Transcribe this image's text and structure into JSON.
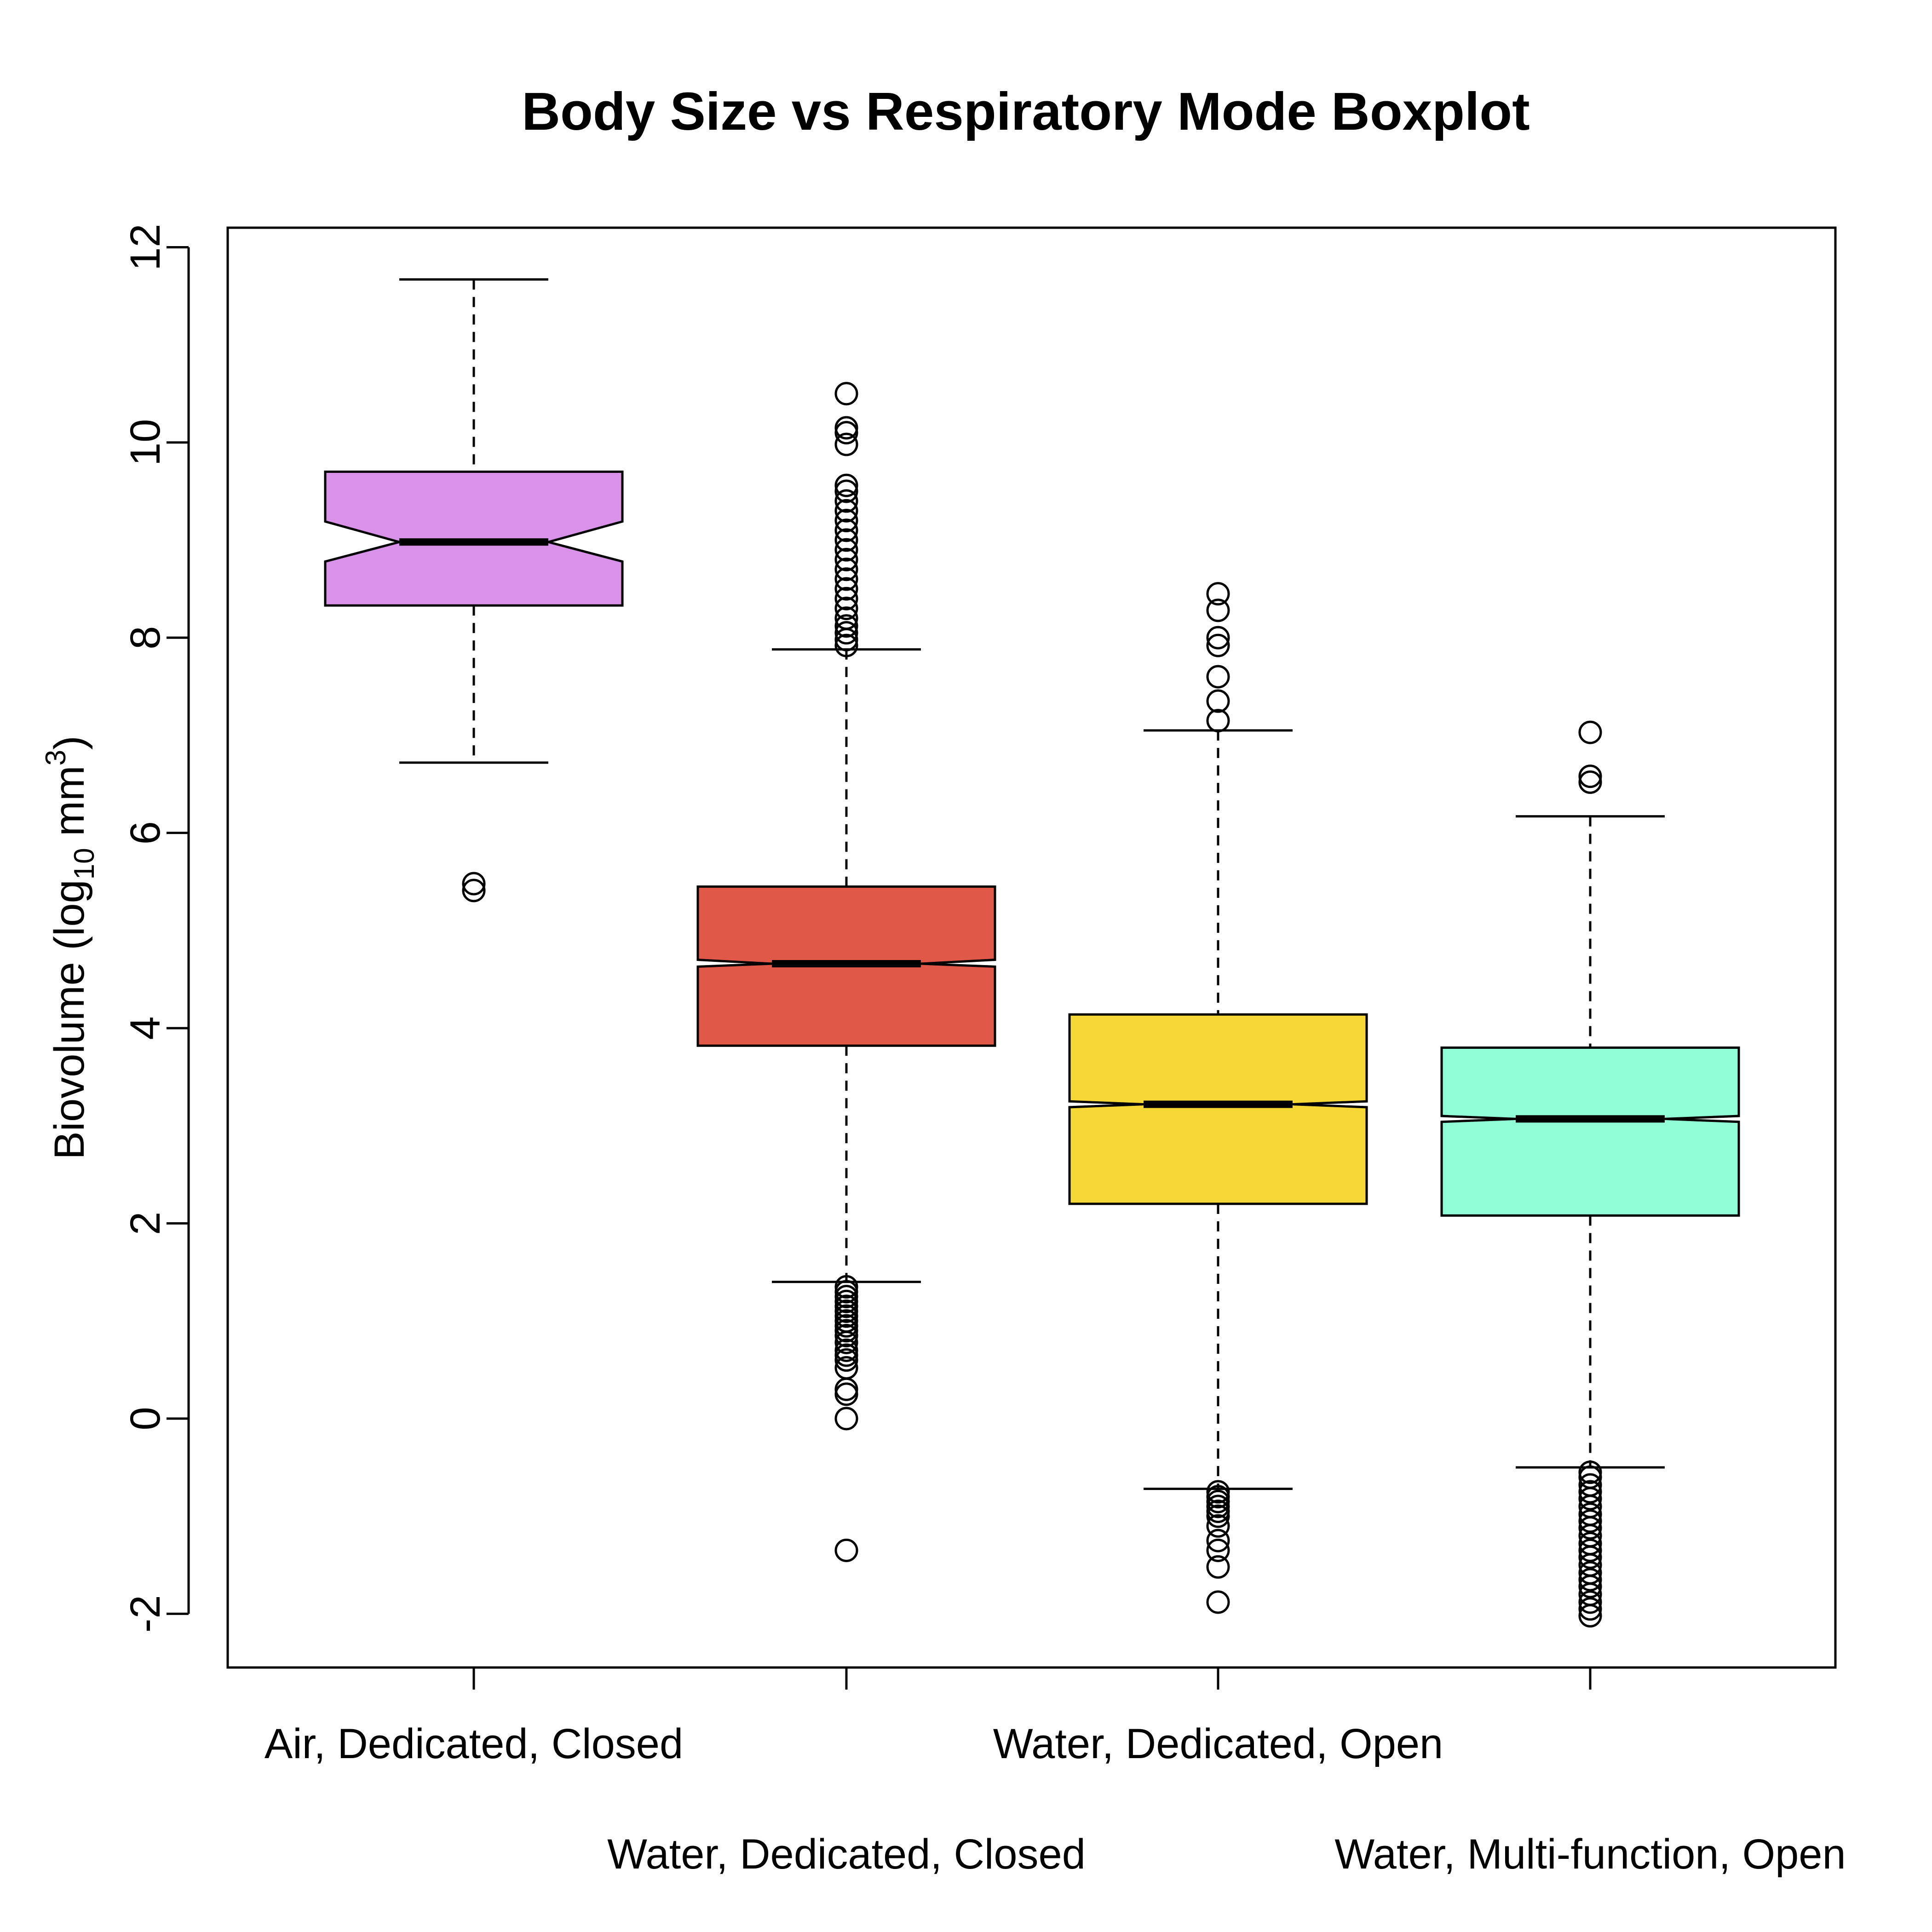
{
  "chart_data": {
    "type": "boxplot",
    "title": "Body Size vs Respiratory Mode Boxplot",
    "ylabel": {
      "pre": "Biovolume (log",
      "sub": "10",
      "mid": " mm",
      "sup": "3",
      "post": ")"
    },
    "ylim": [
      -2.55,
      12.2
    ],
    "yticks": [
      {
        "value": -2,
        "label": "-2"
      },
      {
        "value": 0,
        "label": "0"
      },
      {
        "value": 2,
        "label": "2"
      },
      {
        "value": 4,
        "label": "4"
      },
      {
        "value": 6,
        "label": "6"
      },
      {
        "value": 8,
        "label": "8"
      },
      {
        "value": 10,
        "label": "10"
      },
      {
        "value": 12,
        "label": "12"
      }
    ],
    "grid": false,
    "notched": true,
    "boxes": [
      {
        "label": "Air, Dedicated, Closed",
        "color": "#d892e8",
        "whisker_low": 6.72,
        "q1": 8.33,
        "median": 8.98,
        "q3": 9.7,
        "whisker_high": 11.67,
        "notch_low": 8.78,
        "notch_high": 9.19,
        "outliers": [
          5.41,
          5.48
        ]
      },
      {
        "label": "Water, Dedicated, Closed",
        "color": "#e05848",
        "whisker_low": 1.4,
        "q1": 3.82,
        "median": 4.66,
        "q3": 5.45,
        "whisker_high": 7.88,
        "notch_low": 4.63,
        "notch_high": 4.7,
        "outliers": [
          -1.35,
          0.0,
          0.25,
          0.3,
          0.52,
          0.6,
          0.65,
          0.7,
          0.78,
          0.85,
          0.9,
          0.95,
          1.0,
          1.05,
          1.1,
          1.15,
          1.2,
          1.25,
          1.3,
          1.35,
          7.92,
          7.98,
          8.05,
          8.12,
          8.2,
          8.3,
          8.4,
          8.5,
          8.6,
          8.7,
          8.8,
          8.9,
          9.0,
          9.1,
          9.2,
          9.3,
          9.4,
          9.5,
          9.56,
          9.98,
          10.1,
          10.15,
          10.5
        ]
      },
      {
        "label": "Water, Dedicated, Open",
        "color": "#f5d835",
        "whisker_low": -0.72,
        "q1": 2.2,
        "median": 3.22,
        "q3": 4.14,
        "whisker_high": 7.05,
        "notch_low": 3.19,
        "notch_high": 3.25,
        "outliers": [
          -1.88,
          -1.52,
          -1.35,
          -1.25,
          -1.1,
          -1.0,
          -0.95,
          -0.9,
          -0.85,
          -0.8,
          -0.75,
          7.15,
          7.35,
          7.6,
          7.92,
          8.0,
          8.28,
          8.45
        ]
      },
      {
        "label": "Water, Multi-function, Open",
        "color": "#90fdd6",
        "whisker_low": -0.5,
        "q1": 2.08,
        "median": 3.07,
        "q3": 3.8,
        "whisker_high": 6.17,
        "notch_low": 3.04,
        "notch_high": 3.1,
        "outliers": [
          -2.02,
          -1.95,
          -1.88,
          -1.8,
          -1.72,
          -1.65,
          -1.58,
          -1.5,
          -1.42,
          -1.35,
          -1.28,
          -1.2,
          -1.12,
          -1.05,
          -0.98,
          -0.9,
          -0.82,
          -0.75,
          -0.68,
          -0.6,
          -0.55,
          6.52,
          6.58,
          7.03
        ]
      }
    ]
  }
}
